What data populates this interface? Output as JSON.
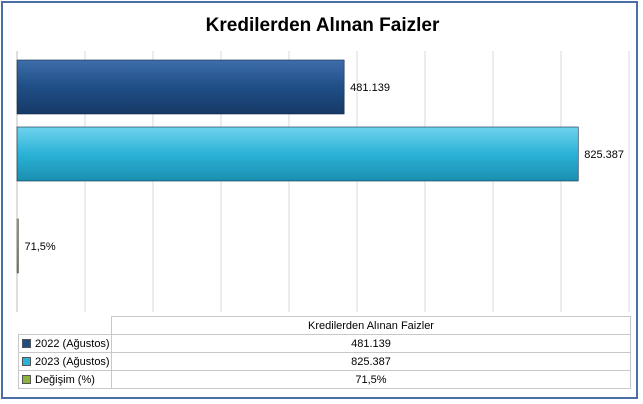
{
  "chart_data": {
    "type": "bar",
    "orientation": "horizontal",
    "title": "Kredilerden Alınan Faizler",
    "table_header": "Kredilerden Alınan Faizler",
    "series": [
      {
        "name": "2022 (Ağustos)",
        "value": 481139,
        "label": "481.139",
        "color": "#1f4e86"
      },
      {
        "name": "2023 (Ağustos)",
        "value": 825387,
        "label": "825.387",
        "color": "#2bb2d6"
      },
      {
        "name": "Değişim (%)",
        "value": 71.5,
        "label": "71,5%",
        "color": "#8db33c"
      }
    ],
    "xlim": [
      0,
      900000
    ],
    "grid": true,
    "legend": "data-table"
  }
}
